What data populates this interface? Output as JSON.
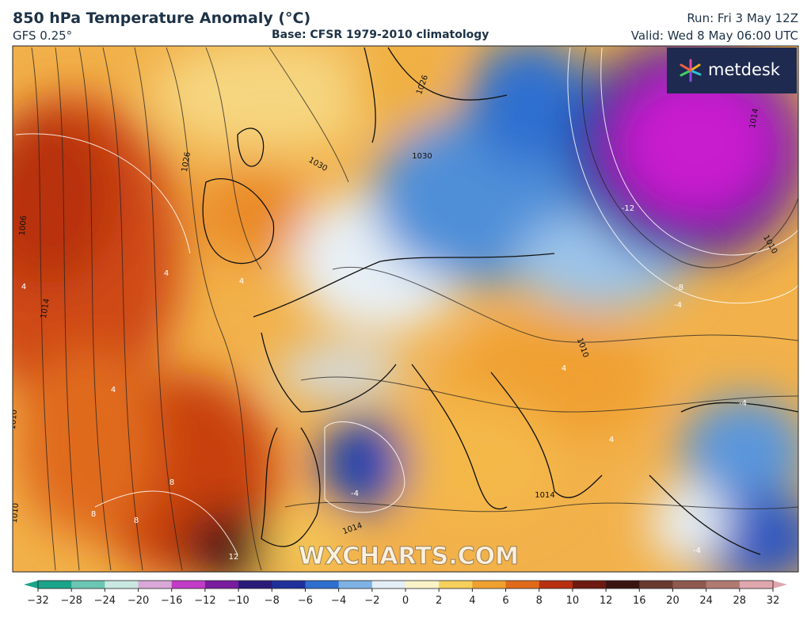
{
  "header": {
    "title": "850 hPa Temperature Anomaly (°C)",
    "model": "GFS 0.25°",
    "base": "Base: CFSR 1979-2010 climatology",
    "run": "Run: Fri 3 May 12Z",
    "valid": "Valid: Wed 8 May 06:00 UTC"
  },
  "logo": {
    "text": "metdesk"
  },
  "watermark": "WXCHARTS.COM",
  "contour_labels": [
    "1026",
    "1030",
    "1030",
    "1026",
    "1006",
    "1014",
    "1010",
    "1010",
    "1014",
    "1010",
    "-12",
    "-8",
    "-4",
    "4",
    "4",
    "4",
    "4",
    "8",
    "8",
    "8",
    "12",
    "-4",
    "-4",
    "4",
    "4",
    "-4",
    "1010",
    "1014",
    "1014"
  ],
  "colorbar": {
    "ticks": [
      {
        "value": -32,
        "label": "−32"
      },
      {
        "value": -28,
        "label": "−28"
      },
      {
        "value": -24,
        "label": "−24"
      },
      {
        "value": -20,
        "label": "−20"
      },
      {
        "value": -16,
        "label": "−16"
      },
      {
        "value": -12,
        "label": "−12"
      },
      {
        "value": -10,
        "label": "−10"
      },
      {
        "value": -8,
        "label": "−8"
      },
      {
        "value": -6,
        "label": "−6"
      },
      {
        "value": -4,
        "label": "−4"
      },
      {
        "value": -2,
        "label": "−2"
      },
      0,
      2,
      4,
      6,
      8,
      10,
      12,
      16,
      20,
      24,
      28,
      32
    ],
    "colors": [
      "#1aa58a",
      "#6cc6b4",
      "#c9e8e0",
      "#d9a8d8",
      "#c23cc8",
      "#7a1ca0",
      "#2a1a78",
      "#1e2f9a",
      "#2f6fd0",
      "#7eb2e4",
      "#e4eef6",
      "#fbf3c8",
      "#f6cf5c",
      "#f0a030",
      "#e06a1a",
      "#b8300e",
      "#6e1a10",
      "#3a1410",
      "#6a3a30",
      "#8e5a50",
      "#b07a72",
      "#e0a6ae"
    ]
  }
}
